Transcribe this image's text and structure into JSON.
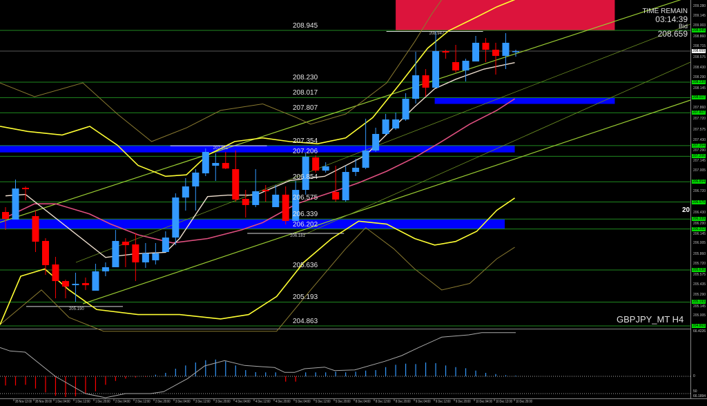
{
  "symbol_label": "GBPJPY_MT H4",
  "info_panel": {
    "time_remain_label": "TIME REMAIN",
    "time_remain": "03:14:39",
    "bid_label": "Bid",
    "bid": "208.659"
  },
  "edge_label": "20",
  "current_price": "208.659",
  "colors": {
    "bull": "#3399ff",
    "bear": "#ff0000",
    "level": "#1f8a1f",
    "zone": "#0000ff",
    "supply": "#dc143c",
    "ma_fast": "#f0e0d0",
    "ma_slow": "#e05080",
    "band_inner": "#ffff33",
    "band_outer": "#8a7a30",
    "trend": "#9acd32"
  },
  "levels": [
    "208.945",
    "208.230",
    "208.017",
    "207.807",
    "207.354",
    "207.206",
    "206.854",
    "206.575",
    "206.339",
    "206.202",
    "205.636",
    "205.193",
    "204.863"
  ],
  "marker_labels": [
    {
      "text": "208.947",
      "price": 208.96,
      "index": 42.9
    },
    {
      "text": "207.361",
      "price": 207.38,
      "index": 21.3
    },
    {
      "text": "205.190",
      "price": 205.16,
      "index": 6.9
    },
    {
      "text": "206.181",
      "price": 206.17,
      "index": 29.0
    }
  ],
  "price_axis": [
    "209.280",
    "209.145",
    "209.003",
    "208.860",
    "208.715",
    "208.575",
    "208.430",
    "208.290",
    "208.145",
    "207.860",
    "207.720",
    "207.575",
    "207.430",
    "207.290",
    "207.145",
    "207.005",
    "206.720",
    "206.430",
    "206.290",
    "206.145",
    "206.005",
    "205.860",
    "205.720",
    "205.575",
    "205.435",
    "205.290",
    "205.145",
    "205.005"
  ],
  "time_axis": [
    "28 Nov 12:00",
    "28 Nov 20:00",
    "1 Dec 04:00",
    "1 Dec 12:00",
    "1 Dec 20:00",
    "2 Dec 04:00",
    "2 Dec 12:00",
    "2 Dec 20:00",
    "3 Dec 04:00",
    "3 Dec 12:00",
    "3 Dec 20:00",
    "4 Dec 04:00",
    "4 Dec 12:00",
    "4 Dec 20:00",
    "5 Dec 04:00",
    "5 Dec 12:00",
    "5 Dec 20:00",
    "8 Dec 04:00",
    "8 Dec 12:00",
    "8 Dec 20:00",
    "9 Dec 04:00",
    "9 Dec 12:00",
    "9 Dec 20:00",
    "10 Dec 04:00",
    "10 Dec 12:00",
    "10 Dec 20:00"
  ],
  "oscillator_axis": {
    "top": "66.4226",
    "zero": "0",
    "low": "50",
    "bottom": "66.1894"
  },
  "chart_data": {
    "type": "candlestick",
    "price_range": [
      204.83,
      209.365
    ],
    "candles_ohlc": [
      [
        206.437,
        206.504,
        206.189,
        206.342
      ],
      [
        206.332,
        206.885,
        206.332,
        206.761
      ],
      [
        206.771,
        206.79,
        206.599,
        206.752
      ],
      [
        206.38,
        206.456,
        205.884,
        206.027
      ],
      [
        206.037,
        206.075,
        205.569,
        205.703
      ],
      [
        205.712,
        205.817,
        205.245,
        205.483
      ],
      [
        205.483,
        205.503,
        205.245,
        205.407
      ],
      [
        205.426,
        205.598,
        205.197,
        205.445
      ],
      [
        205.455,
        205.531,
        205.359,
        205.426
      ],
      [
        205.35,
        205.722,
        205.35,
        205.617
      ],
      [
        205.617,
        205.741,
        205.55,
        205.674
      ],
      [
        205.674,
        206.189,
        205.674,
        206.037
      ],
      [
        206.027,
        206.075,
        205.674,
        205.979
      ],
      [
        205.989,
        206.142,
        205.483,
        205.741
      ],
      [
        205.741,
        206.008,
        205.665,
        205.865
      ],
      [
        205.77,
        206.008,
        205.712,
        205.865
      ],
      [
        205.884,
        206.17,
        205.884,
        206.084
      ],
      [
        206.084,
        206.695,
        205.979,
        206.637
      ],
      [
        206.637,
        206.905,
        206.456,
        206.79
      ],
      [
        206.79,
        207.029,
        206.456,
        206.981
      ],
      [
        206.971,
        207.315,
        206.933,
        207.267
      ],
      [
        207.076,
        207.248,
        206.866,
        207.114
      ],
      [
        207.114,
        207.267,
        207.029,
        207.038
      ],
      [
        207.029,
        207.286,
        206.58,
        206.609
      ],
      [
        206.618,
        206.742,
        206.361,
        206.533
      ],
      [
        206.533,
        207.029,
        206.504,
        206.723
      ],
      [
        206.742,
        206.809,
        206.58,
        206.723
      ],
      [
        206.504,
        206.809,
        206.504,
        206.676
      ],
      [
        206.676,
        206.79,
        206.265,
        206.313
      ],
      [
        206.313,
        206.866,
        206.313,
        206.742
      ],
      [
        206.742,
        207.248,
        206.676,
        207.2
      ],
      [
        207.191,
        207.219,
        206.981,
        207.009
      ],
      [
        207.009,
        207.124,
        206.981,
        207.067
      ],
      [
        206.714,
        207.076,
        206.58,
        206.609
      ],
      [
        206.599,
        207.076,
        206.58,
        206.99
      ],
      [
        206.99,
        207.172,
        206.933,
        207.048
      ],
      [
        207.048,
        207.725,
        207.029,
        207.286
      ],
      [
        207.286,
        207.601,
        207.267,
        207.515
      ],
      [
        207.515,
        207.792,
        207.505,
        207.715
      ],
      [
        207.591,
        207.811,
        207.572,
        207.715
      ],
      [
        207.715,
        208.078,
        207.696,
        208.001
      ],
      [
        208.001,
        208.65,
        207.935,
        208.325
      ],
      [
        208.325,
        208.411,
        208.03,
        208.154
      ],
      [
        208.154,
        208.936,
        208.154,
        208.659
      ],
      [
        208.659,
        208.678,
        208.554,
        208.64
      ],
      [
        208.507,
        208.745,
        208.364,
        208.392
      ],
      [
        208.392,
        208.554,
        208.24,
        208.526
      ],
      [
        208.516,
        208.869,
        208.516,
        208.774
      ],
      [
        208.774,
        208.84,
        208.507,
        208.678
      ],
      [
        208.678,
        208.774,
        208.335,
        208.593
      ],
      [
        208.593,
        208.907,
        208.411,
        208.774
      ],
      [
        208.65,
        208.678,
        208.583,
        208.659
      ]
    ],
    "ma_fast": [
      [
        0,
        206.66
      ],
      [
        2,
        206.68
      ],
      [
        10,
        205.81
      ],
      [
        13,
        205.86
      ],
      [
        16,
        205.88
      ],
      [
        17.4,
        206.07
      ],
      [
        20.2,
        206.65
      ],
      [
        22.2,
        206.67
      ],
      [
        25,
        206.67
      ],
      [
        28.4,
        206.87
      ],
      [
        31.9,
        206.93
      ],
      [
        36,
        207.22
      ],
      [
        38.1,
        207.51
      ],
      [
        40.9,
        207.89
      ],
      [
        42.9,
        208.14
      ],
      [
        45,
        208.27
      ],
      [
        47.8,
        208.41
      ],
      [
        50.9,
        208.5
      ]
    ],
    "ma_slow": [
      [
        0,
        206.36
      ],
      [
        2.9,
        206.55
      ],
      [
        5,
        206.55
      ],
      [
        8.4,
        206.41
      ],
      [
        10.5,
        206.27
      ],
      [
        13.3,
        206.12
      ],
      [
        16.7,
        206.01
      ],
      [
        20.2,
        206.07
      ],
      [
        23.6,
        206.19
      ],
      [
        25.7,
        206.29
      ],
      [
        29.1,
        206.55
      ],
      [
        32.6,
        206.71
      ],
      [
        35.3,
        206.84
      ],
      [
        38.1,
        207.0
      ],
      [
        40.9,
        207.19
      ],
      [
        43.6,
        207.41
      ],
      [
        46.4,
        207.65
      ],
      [
        49.1,
        207.84
      ],
      [
        50.9,
        208.0
      ]
    ],
    "band_upper": [
      [
        -0.55,
        207.62
      ],
      [
        2.2,
        207.55
      ],
      [
        5.66,
        207.5
      ],
      [
        8.42,
        207.62
      ],
      [
        11.18,
        207.36
      ],
      [
        13.25,
        207.08
      ],
      [
        16,
        206.93
      ],
      [
        18.08,
        206.95
      ],
      [
        20.15,
        207.22
      ],
      [
        22.9,
        207.41
      ],
      [
        25.7,
        207.46
      ],
      [
        28.4,
        207.41
      ],
      [
        31.2,
        207.38
      ],
      [
        34,
        207.46
      ],
      [
        36.7,
        207.74
      ],
      [
        39.5,
        208.22
      ],
      [
        42.2,
        208.7
      ],
      [
        44.3,
        208.94
      ],
      [
        47.1,
        209.13
      ],
      [
        49.1,
        209.27
      ],
      [
        50.9,
        209.37
      ]
    ],
    "band_lower": [
      [
        -0.55,
        204.88
      ],
      [
        1.52,
        205.55
      ],
      [
        3.93,
        205.65
      ],
      [
        6.35,
        205.36
      ],
      [
        9.11,
        205.09
      ],
      [
        13.25,
        205.02
      ],
      [
        17.4,
        205.02
      ],
      [
        21.5,
        204.96
      ],
      [
        24.3,
        205.02
      ],
      [
        27.1,
        205.27
      ],
      [
        29.8,
        205.74
      ],
      [
        32.6,
        206.07
      ],
      [
        35.3,
        206.31
      ],
      [
        38.1,
        206.27
      ],
      [
        40.9,
        206.07
      ],
      [
        42.9,
        205.98
      ],
      [
        45,
        206.03
      ],
      [
        47.1,
        206.17
      ],
      [
        49.1,
        206.46
      ],
      [
        50.9,
        206.63
      ]
    ],
    "outer_upper": [
      [
        -0.55,
        208.22
      ],
      [
        2.9,
        208.03
      ],
      [
        7.73,
        208.22
      ],
      [
        11.18,
        207.79
      ],
      [
        14.6,
        207.41
      ],
      [
        18.1,
        207.6
      ],
      [
        21.5,
        207.84
      ],
      [
        25.7,
        207.93
      ],
      [
        29.1,
        207.74
      ],
      [
        30.5,
        207.65
      ],
      [
        34,
        207.79
      ],
      [
        38.1,
        208.22
      ],
      [
        40.9,
        208.79
      ],
      [
        42.6,
        209.17
      ],
      [
        43.6,
        209.37
      ]
    ],
    "outer_lower": [
      [
        -0.55,
        204.88
      ],
      [
        3.59,
        205.36
      ],
      [
        6.35,
        204.98
      ],
      [
        9.8,
        204.79
      ],
      [
        27.1,
        204.79
      ],
      [
        30.5,
        205.36
      ],
      [
        34,
        205.93
      ],
      [
        36,
        206.22
      ],
      [
        38.8,
        205.93
      ],
      [
        40.9,
        205.65
      ],
      [
        43.6,
        205.36
      ],
      [
        46.4,
        205.45
      ],
      [
        49.1,
        205.79
      ],
      [
        50.9,
        205.95
      ]
    ],
    "zones": [
      {
        "type": "supply",
        "from_index": 39.0,
        "to_index": 60.9,
        "high": 209.37,
        "low": 208.95
      },
      {
        "type": "zone",
        "from_index": -0.6,
        "to_index": 50.9,
        "high": 207.36,
        "low": 207.26
      },
      {
        "type": "zone",
        "from_index": -0.6,
        "to_index": 49.9,
        "high": 206.34,
        "low": 206.2
      },
      {
        "type": "zone",
        "from_index": 42.9,
        "to_index": 60.9,
        "high": 208.02,
        "low": 207.93
      }
    ],
    "oscillator_histogram": [
      -13.3,
      -13.3,
      -12.3,
      -17.7,
      -23.3,
      -28.3,
      -30,
      -29,
      -25,
      -21.7,
      -12.3,
      -6.7,
      -3.3,
      -1.7,
      -1,
      2.3,
      5,
      11,
      15.7,
      20,
      23.3,
      24.3,
      21.7,
      15.7,
      9,
      6,
      5.7,
      5.7,
      -7.7,
      -7.7,
      5.7,
      5.7,
      5.7,
      6.7,
      5.7,
      6.7,
      8.3,
      9,
      13.3,
      16.7,
      18.3,
      17.7,
      20,
      19,
      15.7,
      13.3,
      11.7,
      8.3,
      5,
      3.3,
      1.7,
      1
    ],
    "oscillator_signal": [
      [
        -0.55,
        41.7
      ],
      [
        0.45,
        36.7
      ],
      [
        1.96,
        35
      ],
      [
        4.97,
        0
      ],
      [
        7.98,
        -25
      ],
      [
        9.99,
        -31
      ],
      [
        12,
        -25
      ],
      [
        14.5,
        -25
      ],
      [
        15.8,
        -22.3
      ],
      [
        18.2,
        -3.3
      ],
      [
        19.9,
        15
      ],
      [
        21.9,
        22.7
      ],
      [
        23.9,
        15.7
      ],
      [
        26.9,
        12.7
      ],
      [
        27.9,
        5.7
      ],
      [
        28.9,
        5.7
      ],
      [
        29.9,
        11
      ],
      [
        31.9,
        13.3
      ],
      [
        32.9,
        8.3
      ],
      [
        34.9,
        9.3
      ],
      [
        37.9,
        21.7
      ],
      [
        39.6,
        30
      ],
      [
        41.3,
        41.7
      ],
      [
        43.6,
        56.7
      ],
      [
        46.3,
        60
      ],
      [
        47.6,
        63.3
      ],
      [
        51,
        63.3
      ]
    ]
  }
}
